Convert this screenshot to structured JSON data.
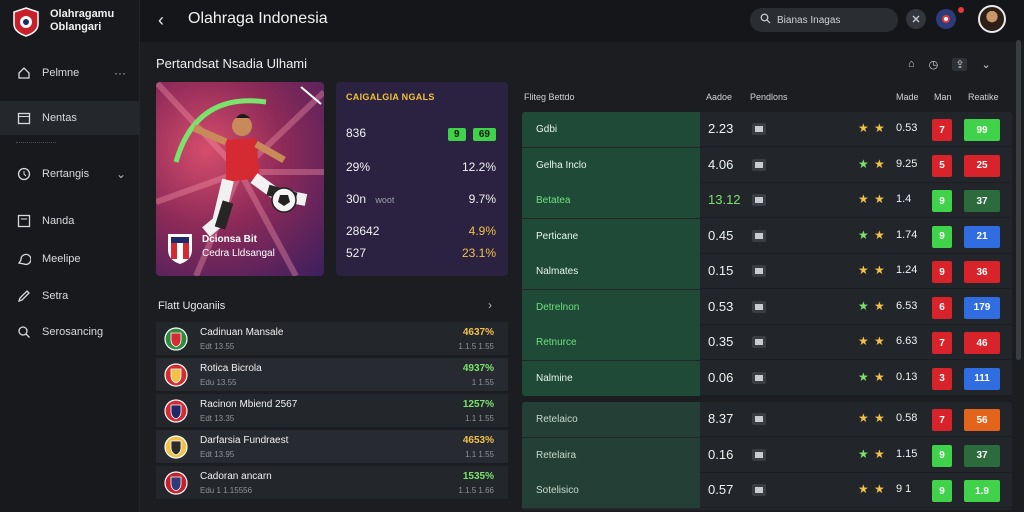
{
  "brand": {
    "line1": "Olahragamu",
    "line2": "Oblangari"
  },
  "topbar": {
    "title": "Olahraga Indonesia",
    "search_placeholder": "Bianas Inagas"
  },
  "sidebar": {
    "items": [
      {
        "label": "Pelmne",
        "icon": "home-icon"
      },
      {
        "label": "Nentas",
        "icon": "calendar-icon"
      },
      {
        "label": "Rertangis",
        "icon": "trophy-icon"
      },
      {
        "label": "Nanda",
        "icon": "list-icon"
      },
      {
        "label": "Meelipe",
        "icon": "chat-icon"
      },
      {
        "label": "Setra",
        "icon": "edit-icon"
      },
      {
        "label": "Serosancing",
        "icon": "search-icon"
      }
    ]
  },
  "main": {
    "section_title": "Pertandsat Nsadia Ulhami",
    "stats": {
      "head": "CAIGALGIA NGALS",
      "rows": [
        {
          "left": "836",
          "pill_a": "9",
          "pill_b": "69"
        },
        {
          "left": "29%",
          "right": "12.2%"
        },
        {
          "left": "30n",
          "left_sub": "woot",
          "right": "9.7%"
        },
        {
          "left": "28642",
          "right": "4.9%"
        },
        {
          "left": "527",
          "right": "23.1%"
        }
      ]
    },
    "hero": {
      "line1": "Dcionsa Bit",
      "line2": "Cedra Lldsangal"
    },
    "recent": {
      "title": "Flatt Ugoaniis",
      "items": [
        {
          "name": "Cadinuan Mansale",
          "sub": "Edt 13.55",
          "p1": "4637%",
          "p2": "1.1.5 1.55",
          "p1_color": "#f2c14a"
        },
        {
          "name": "Rotica Bicrola",
          "sub": "Edu 13.55",
          "p1": "4937%",
          "p2": "1 1.55",
          "p1_color": "#7be36c"
        },
        {
          "name": "Racinon Mbiend 2567",
          "sub": "Edt 13.35",
          "p1": "1257%",
          "p2": "1.1 1.55",
          "p1_color": "#7be36c"
        },
        {
          "name": "Darfarsia Fundraest",
          "sub": "Edt 13.95",
          "p1": "4653%",
          "p2": "1.1 1.55",
          "p1_color": "#f2c14a"
        },
        {
          "name": "Cadoran ancarn",
          "sub": "Edu 1 1.15556",
          "p1": "1535%",
          "p2": "1.1.5 1.66",
          "p1_color": "#7be36c"
        }
      ]
    },
    "table": {
      "headers": [
        "Fliteg Bettdo",
        "Aadoe",
        "Pendlons",
        "Made",
        "Man",
        "Reatike"
      ],
      "group1": [
        {
          "label": "Gdbi",
          "value": "2.23",
          "num": "0.53",
          "chip": "7",
          "chip_color": "#d8232b",
          "big": "99",
          "big_color": "#3fd24a"
        },
        {
          "label": "Gelha Inclo",
          "value": "4.06",
          "num": "9.25",
          "chip": "5",
          "chip_color": "#d8232b",
          "big": "25",
          "big_color": "#d8232b"
        },
        {
          "label": "Betatea",
          "value": "13.12",
          "num": "1.4",
          "chip": "9",
          "chip_color": "#3fd24a",
          "big": "37",
          "big_color": "#2b6b3c"
        },
        {
          "label": "Perticane",
          "value": "0.45",
          "num": "1.74",
          "chip": "9",
          "chip_color": "#3fd24a",
          "big": "21",
          "big_color": "#2f6de0"
        },
        {
          "label": "Nalmates",
          "value": "0.15",
          "num": "1.24",
          "chip": "9",
          "chip_color": "#d8232b",
          "big": "36",
          "big_color": "#d8232b"
        },
        {
          "label": "Detrelnon",
          "value": "0.53",
          "num": "6.53",
          "chip": "6",
          "chip_color": "#d8232b",
          "big": "179",
          "big_color": "#2f6de0"
        },
        {
          "label": "Retnurce",
          "value": "0.35",
          "num": "6.63",
          "chip": "7",
          "chip_color": "#d8232b",
          "big": "46",
          "big_color": "#d8232b"
        },
        {
          "label": "Nalmine",
          "value": "0.06",
          "num": "0.13",
          "chip": "3",
          "chip_color": "#d8232b",
          "big": "111",
          "big_color": "#2f6de0"
        }
      ],
      "group2": [
        {
          "label": "Retelaico",
          "value": "8.37",
          "num": "0.58",
          "chip": "7",
          "chip_color": "#d8232b",
          "big": "56",
          "big_color": "#e4641c"
        },
        {
          "label": "Retelaira",
          "value": "0.16",
          "num": "1.15",
          "chip": "9",
          "chip_color": "#3fd24a",
          "big": "37",
          "big_color": "#2b6b3c"
        },
        {
          "label": "Sotelisico",
          "value": "0.57",
          "num": "9 1",
          "chip": "9",
          "chip_color": "#3fd24a",
          "big": "1.9",
          "big_color": "#3fd24a"
        }
      ]
    }
  }
}
